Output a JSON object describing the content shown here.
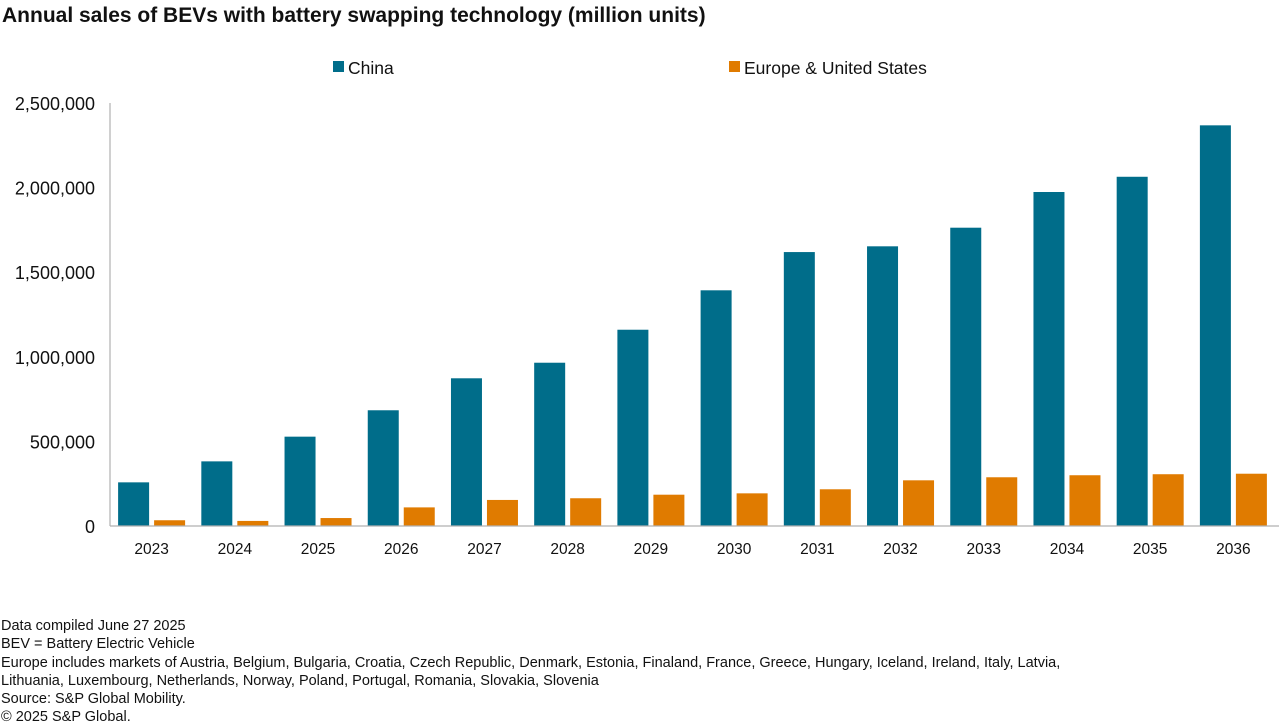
{
  "chart_data": {
    "type": "bar",
    "title": "Annual sales of BEVs with battery swapping technology (million units)",
    "xlabel": "",
    "ylabel": "",
    "ylim": [
      0,
      2500000
    ],
    "yticks": [
      0,
      500000,
      1000000,
      1500000,
      2000000,
      2500000
    ],
    "ytick_labels": [
      "0",
      "500,000",
      "1,000,000",
      "1,500,000",
      "2,000,000",
      "2,500,000"
    ],
    "grid": false,
    "legend_position": "top-center",
    "categories": [
      "2023",
      "2024",
      "2025",
      "2026",
      "2027",
      "2028",
      "2029",
      "2030",
      "2031",
      "2032",
      "2033",
      "2034",
      "2035",
      "2036"
    ],
    "series": [
      {
        "name": "China",
        "color": "#006d8a",
        "values": [
          258000,
          382000,
          528000,
          684000,
          873000,
          965000,
          1160000,
          1393000,
          1619000,
          1653000,
          1763000,
          1974000,
          2064000,
          2368000
        ]
      },
      {
        "name": "Europe & United States",
        "color": "#e07b00",
        "values": [
          34000,
          30000,
          47000,
          110000,
          154000,
          164000,
          185000,
          193000,
          217000,
          270000,
          288000,
          300000,
          306000,
          309000
        ]
      }
    ]
  },
  "notes": [
    "Data compiled June 27 2025",
    "BEV = Battery Electric Vehicle",
    "Europe includes markets of Austria, Belgium, Bulgaria, Croatia, Czech Republic, Denmark, Estonia, Finaland, France, Greece, Hungary, Iceland, Ireland, Italy, Latvia,",
    "Lithuania, Luxembourg, Netherlands, Norway, Poland, Portugal, Romania, Slovakia, Slovenia",
    "Source: S&P Global Mobility.",
    "© 2025 S&P Global."
  ]
}
